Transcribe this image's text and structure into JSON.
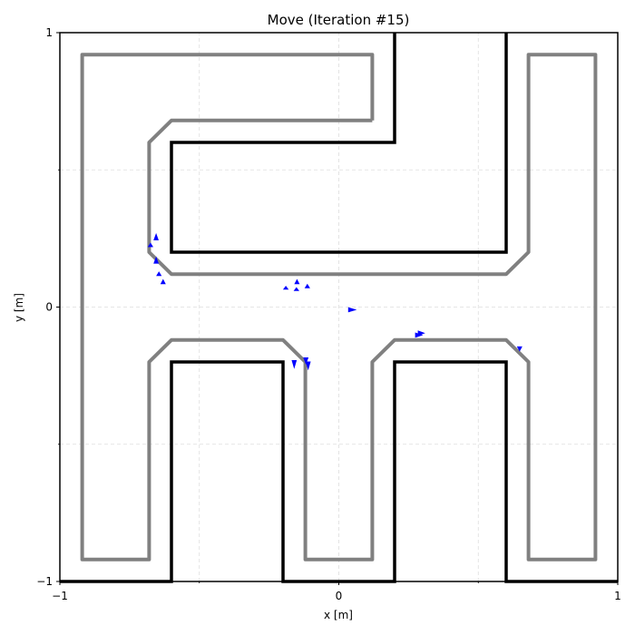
{
  "chart_data": {
    "type": "line",
    "title": "Move (Iteration #15)",
    "xlabel": "x [m]",
    "ylabel": "y [m]",
    "xlim": [
      -1,
      1
    ],
    "ylim": [
      -1,
      1
    ],
    "grid": true,
    "grid_style": "dashed",
    "x_ticks": [
      {
        "value": -1,
        "label": "−1"
      },
      {
        "value": 0,
        "label": "0"
      },
      {
        "value": 1,
        "label": "1"
      }
    ],
    "y_ticks": [
      {
        "value": -1,
        "label": "−1"
      },
      {
        "value": 0,
        "label": "0"
      },
      {
        "value": 1,
        "label": "1"
      }
    ],
    "grid_x": [
      -0.5,
      0,
      0.5
    ],
    "grid_y": [
      -0.5,
      0,
      0.5
    ],
    "colors": {
      "walls": "#000000",
      "inner_boundary": "#808080",
      "agents": "#0000ff",
      "grid": "#dddddd"
    },
    "walls": [
      [
        [
          0.2,
          1
        ],
        [
          0.2,
          0.6
        ],
        [
          -0.6,
          0.6
        ],
        [
          -0.6,
          0.2
        ],
        [
          0.6,
          0.2
        ],
        [
          0.6,
          1
        ]
      ],
      [
        [
          -1,
          -1
        ],
        [
          -0.6,
          -1
        ],
        [
          -0.6,
          -0.2
        ],
        [
          -0.2,
          -0.2
        ],
        [
          -0.2,
          -1
        ],
        [
          0.2,
          -1
        ],
        [
          0.2,
          -0.2
        ],
        [
          0.6,
          -0.2
        ],
        [
          0.6,
          -1
        ],
        [
          1,
          -1
        ]
      ]
    ],
    "boundaries": [
      [
        [
          0.12,
          0.68
        ],
        [
          -0.6,
          0.68
        ],
        [
          -0.68,
          0.6
        ],
        [
          -0.68,
          0.2
        ],
        [
          -0.6,
          0.12
        ],
        [
          0.6,
          0.12
        ],
        [
          0.68,
          0.2
        ],
        [
          0.68,
          0.92
        ],
        [
          0.92,
          0.92
        ],
        [
          0.92,
          -0.92
        ],
        [
          0.68,
          -0.92
        ],
        [
          0.68,
          -0.2
        ],
        [
          0.6,
          -0.12
        ],
        [
          0.2,
          -0.12
        ],
        [
          0.12,
          -0.2
        ],
        [
          0.12,
          -0.92
        ],
        [
          -0.12,
          -0.92
        ],
        [
          -0.12,
          -0.2
        ],
        [
          -0.2,
          -0.12
        ],
        [
          -0.6,
          -0.12
        ],
        [
          -0.68,
          -0.2
        ],
        [
          -0.68,
          -0.92
        ],
        [
          -0.92,
          -0.92
        ],
        [
          -0.92,
          0.92
        ],
        [
          0.12,
          0.92
        ],
        [
          0.12,
          0.68
        ]
      ]
    ],
    "agents": [
      {
        "x": -0.655,
        "y": 0.245,
        "dx": 0.0,
        "dy": 0.02
      },
      {
        "x": -0.675,
        "y": 0.22,
        "dx": 0.0,
        "dy": 0.012
      },
      {
        "x": -0.655,
        "y": 0.16,
        "dx": 0.0,
        "dy": 0.02
      },
      {
        "x": -0.645,
        "y": 0.115,
        "dx": 0.0,
        "dy": 0.012
      },
      {
        "x": -0.63,
        "y": 0.085,
        "dx": 0.0,
        "dy": 0.014
      },
      {
        "x": -0.19,
        "y": 0.065,
        "dx": 0.0,
        "dy": 0.01
      },
      {
        "x": -0.15,
        "y": 0.085,
        "dx": 0.0,
        "dy": 0.014
      },
      {
        "x": -0.152,
        "y": 0.06,
        "dx": 0.0,
        "dy": 0.01
      },
      {
        "x": -0.113,
        "y": 0.07,
        "dx": 0.0,
        "dy": 0.012
      },
      {
        "x": 0.035,
        "y": -0.01,
        "dx": 0.024,
        "dy": 0.0
      },
      {
        "x": 0.285,
        "y": -0.095,
        "dx": 0.02,
        "dy": 0.0
      },
      {
        "x": 0.275,
        "y": -0.102,
        "dx": 0.022,
        "dy": 0.0
      },
      {
        "x": -0.16,
        "y": -0.195,
        "dx": 0.0,
        "dy": -0.025
      },
      {
        "x": -0.11,
        "y": -0.2,
        "dx": 0.0,
        "dy": -0.025
      },
      {
        "x": -0.118,
        "y": -0.185,
        "dx": 0.0,
        "dy": -0.02
      },
      {
        "x": 0.648,
        "y": -0.145,
        "dx": 0.0,
        "dy": -0.014
      }
    ]
  }
}
